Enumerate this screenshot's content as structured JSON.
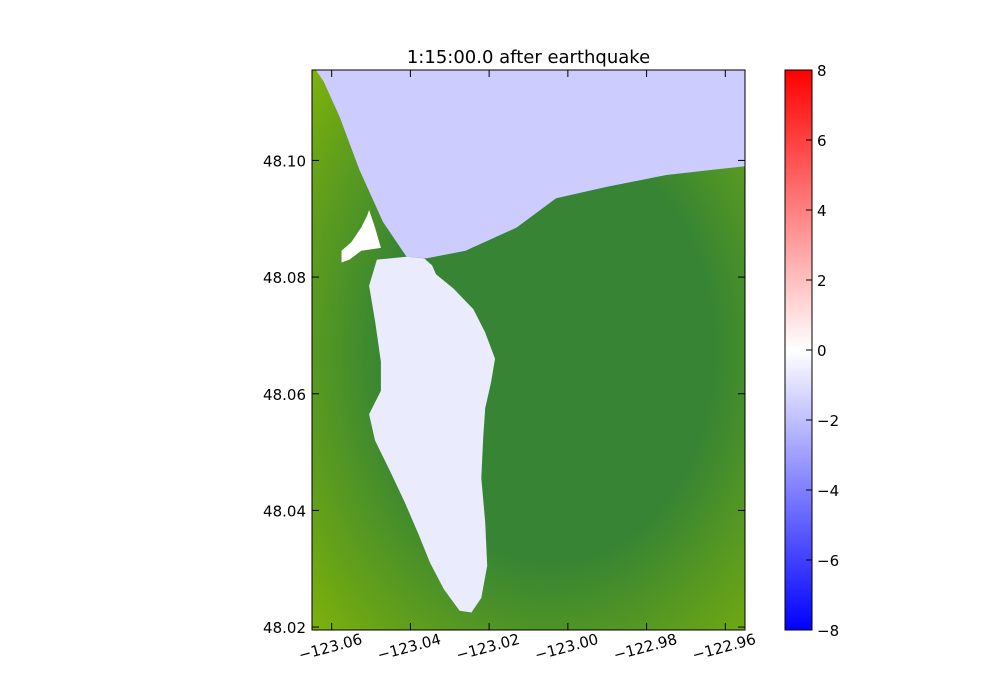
{
  "chart_data": {
    "type": "heatmap",
    "title": "1:15:00.0 after earthquake",
    "xlabel": "",
    "ylabel": "",
    "xlim": [
      -123.065,
      -122.955
    ],
    "ylim": [
      48.0195,
      48.1155
    ],
    "x_ticks": [
      -123.06,
      -123.04,
      -123.02,
      -123.0,
      -122.98,
      -122.96
    ],
    "x_tick_labels": [
      "−123.06",
      "−123.04",
      "−123.02",
      "−123.00",
      "−122.98",
      "−122.96"
    ],
    "y_ticks": [
      48.02,
      48.04,
      48.06,
      48.08,
      48.1
    ],
    "y_tick_labels": [
      "48.02",
      "48.04",
      "48.06",
      "48.08",
      "48.10"
    ],
    "colorbar": {
      "range": [
        -8,
        8
      ],
      "ticks": [
        -8,
        -6,
        -4,
        -2,
        0,
        2,
        4,
        6,
        8
      ],
      "tick_labels": [
        "−8",
        "−6",
        "−4",
        "−2",
        "0",
        "2",
        "4",
        "6",
        "8"
      ],
      "colors": [
        "#0000ff",
        "#ffffff",
        "#ff0000"
      ]
    },
    "land_colors": {
      "low": "#7fb20a",
      "high": "#368434"
    },
    "water_color": "#ccccff",
    "bay_color": "#ebebfe",
    "grid": false,
    "regions": {
      "ocean": [
        [
          -123.064,
          48.1155
        ],
        [
          -122.955,
          48.1155
        ],
        [
          -122.955,
          48.099
        ],
        [
          -122.962,
          48.0985
        ],
        [
          -122.975,
          48.0975
        ],
        [
          -122.99,
          48.0955
        ],
        [
          -123.003,
          48.0935
        ],
        [
          -123.013,
          48.0885
        ],
        [
          -123.026,
          48.0845
        ],
        [
          -123.036,
          48.0832
        ],
        [
          -123.041,
          48.0835
        ],
        [
          -123.043,
          48.0855
        ],
        [
          -123.047,
          48.0895
        ],
        [
          -123.053,
          48.0985
        ],
        [
          -123.058,
          48.1075
        ],
        [
          -123.062,
          48.1135
        ]
      ],
      "bay": [
        [
          -123.0485,
          48.083
        ],
        [
          -123.041,
          48.0835
        ],
        [
          -123.0365,
          48.0832
        ],
        [
          -123.0345,
          48.082
        ],
        [
          -123.0335,
          48.0805
        ],
        [
          -123.029,
          48.078
        ],
        [
          -123.024,
          48.0745
        ],
        [
          -123.021,
          48.0705
        ],
        [
          -123.0185,
          48.066
        ],
        [
          -123.0195,
          48.062
        ],
        [
          -123.021,
          48.0575
        ],
        [
          -123.0215,
          48.0525
        ],
        [
          -123.022,
          48.0455
        ],
        [
          -123.021,
          48.038
        ],
        [
          -123.0205,
          48.0305
        ],
        [
          -123.022,
          48.025
        ],
        [
          -123.0245,
          48.0225
        ],
        [
          -123.0275,
          48.0228
        ],
        [
          -123.0315,
          48.0265
        ],
        [
          -123.035,
          48.031
        ],
        [
          -123.038,
          48.036
        ],
        [
          -123.0415,
          48.0415
        ],
        [
          -123.045,
          48.0465
        ],
        [
          -123.049,
          48.052
        ],
        [
          -123.0505,
          48.0565
        ],
        [
          -123.0475,
          48.0605
        ],
        [
          -123.0475,
          48.0655
        ],
        [
          -123.049,
          48.0725
        ],
        [
          -123.0505,
          48.0785
        ]
      ],
      "lagoon": [
        [
          -123.0505,
          48.0915
        ],
        [
          -123.049,
          48.0885
        ],
        [
          -123.0475,
          48.085
        ],
        [
          -123.0525,
          48.0845
        ],
        [
          -123.0555,
          48.083
        ],
        [
          -123.0575,
          48.0825
        ],
        [
          -123.0575,
          48.0845
        ],
        [
          -123.055,
          48.086
        ],
        [
          -123.0525,
          48.0885
        ],
        [
          -123.051,
          48.0905
        ]
      ]
    }
  }
}
